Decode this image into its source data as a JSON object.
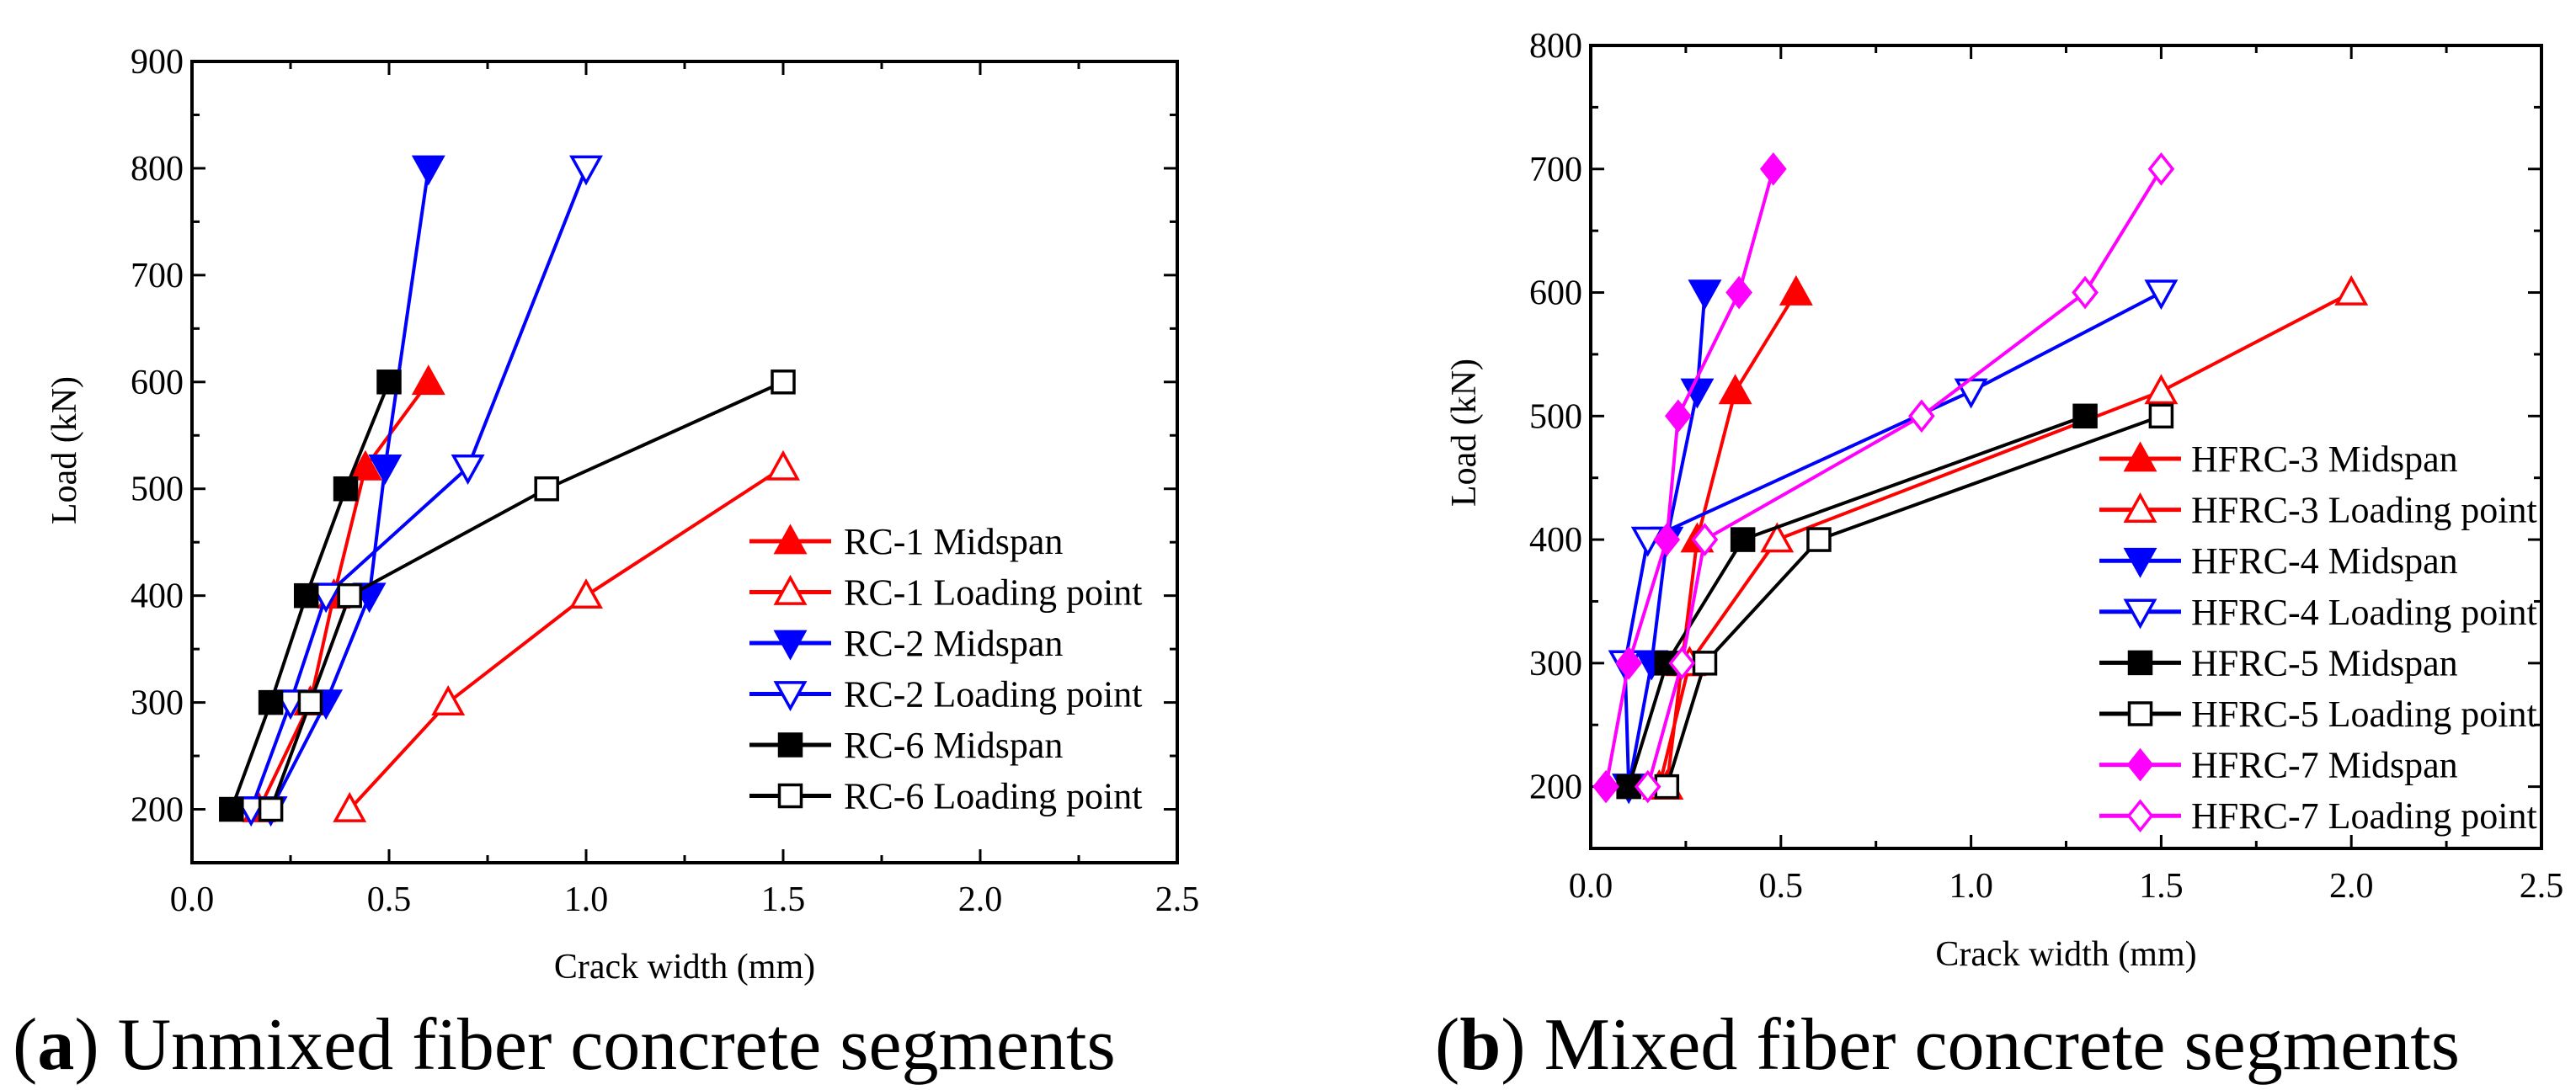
{
  "chart_data": [
    {
      "type": "line",
      "caption_label": "a",
      "caption_text": "Unmixed fiber concrete segments",
      "xlabel": "Crack width (mm)",
      "ylabel": "Load (kN)",
      "xlim": [
        0,
        2.5
      ],
      "ylim": [
        150,
        900
      ],
      "xticks": [
        "0.0",
        "0.5",
        "1.0",
        "1.5",
        "2.0",
        "2.5"
      ],
      "yticks": [
        "200",
        "300",
        "400",
        "500",
        "600",
        "700",
        "800",
        "900"
      ],
      "legend_position": "lower-right",
      "series": [
        {
          "name": "RC-1 Midspan",
          "color": "#ff0000",
          "marker": "triangle-up",
          "filled": true,
          "x": [
            0.17,
            0.3,
            0.36,
            0.44,
            0.6
          ],
          "y": [
            200,
            300,
            400,
            520,
            600
          ]
        },
        {
          "name": "RC-1 Loading point",
          "color": "#ff0000",
          "marker": "triangle-up",
          "filled": false,
          "x": [
            0.4,
            0.65,
            1.0,
            1.5
          ],
          "y": [
            200,
            300,
            400,
            520
          ]
        },
        {
          "name": "RC-2 Midspan",
          "color": "#0000ff",
          "marker": "triangle-down",
          "filled": true,
          "x": [
            0.2,
            0.34,
            0.45,
            0.49,
            0.6
          ],
          "y": [
            200,
            300,
            400,
            520,
            800
          ]
        },
        {
          "name": "RC-2 Loading point",
          "color": "#0000ff",
          "marker": "triangle-down",
          "filled": false,
          "x": [
            0.15,
            0.25,
            0.34,
            0.7,
            1.0
          ],
          "y": [
            200,
            300,
            400,
            520,
            800
          ]
        },
        {
          "name": "RC-6 Midspan",
          "color": "#000000",
          "marker": "square",
          "filled": true,
          "x": [
            0.1,
            0.2,
            0.29,
            0.39,
            0.5
          ],
          "y": [
            200,
            300,
            400,
            500,
            600
          ]
        },
        {
          "name": "RC-6 Loading point",
          "color": "#000000",
          "marker": "square",
          "filled": false,
          "x": [
            0.2,
            0.3,
            0.4,
            0.9,
            1.5
          ],
          "y": [
            200,
            300,
            400,
            500,
            600
          ]
        }
      ]
    },
    {
      "type": "line",
      "caption_label": "b",
      "caption_text": "Mixed fiber concrete segments",
      "xlabel": "Crack width  (mm)",
      "ylabel": "Load (kN)",
      "xlim": [
        0,
        2.5
      ],
      "ylim": [
        150,
        800
      ],
      "xticks": [
        "0.0",
        "0.5",
        "1.0",
        "1.5",
        "2.0",
        "2.5"
      ],
      "yticks": [
        "200",
        "300",
        "400",
        "500",
        "600",
        "700",
        "800"
      ],
      "legend_position": "lower-right",
      "series": [
        {
          "name": "HFRC-3 Midspan",
          "color": "#ff0000",
          "marker": "triangle-up",
          "filled": true,
          "x": [
            0.2,
            0.24,
            0.28,
            0.38,
            0.54
          ],
          "y": [
            200,
            300,
            400,
            520,
            600
          ]
        },
        {
          "name": "HFRC-3 Loading point",
          "color": "#ff0000",
          "marker": "triangle-up",
          "filled": false,
          "x": [
            0.18,
            0.26,
            0.49,
            1.5,
            2.0
          ],
          "y": [
            200,
            300,
            400,
            520,
            600
          ]
        },
        {
          "name": "HFRC-4 Midspan",
          "color": "#0000ff",
          "marker": "triangle-down",
          "filled": true,
          "x": [
            0.1,
            0.16,
            0.2,
            0.28,
            0.3
          ],
          "y": [
            200,
            300,
            400,
            520,
            600
          ]
        },
        {
          "name": "HFRC-4 Loading point",
          "color": "#0000ff",
          "marker": "triangle-down",
          "filled": false,
          "x": [
            0.1,
            0.09,
            0.15,
            1.0,
            1.5
          ],
          "y": [
            200,
            300,
            400,
            520,
            600
          ]
        },
        {
          "name": "HFRC-5 Midspan",
          "color": "#000000",
          "marker": "square",
          "filled": true,
          "x": [
            0.1,
            0.2,
            0.4,
            1.3
          ],
          "y": [
            200,
            300,
            400,
            500
          ]
        },
        {
          "name": "HFRC-5 Loading point",
          "color": "#000000",
          "marker": "square",
          "filled": false,
          "x": [
            0.2,
            0.3,
            0.6,
            1.5
          ],
          "y": [
            200,
            300,
            400,
            500
          ]
        },
        {
          "name": "HFRC-7 Midspan",
          "color": "#ff00ff",
          "marker": "diamond",
          "filled": true,
          "x": [
            0.04,
            0.1,
            0.2,
            0.23,
            0.39,
            0.48
          ],
          "y": [
            200,
            300,
            400,
            500,
            600,
            700
          ]
        },
        {
          "name": "HFRC-7 Loading point",
          "color": "#ff00ff",
          "marker": "diamond",
          "filled": false,
          "x": [
            0.15,
            0.24,
            0.3,
            0.87,
            1.3,
            1.5
          ],
          "y": [
            200,
            300,
            400,
            500,
            600,
            700
          ]
        }
      ]
    }
  ]
}
